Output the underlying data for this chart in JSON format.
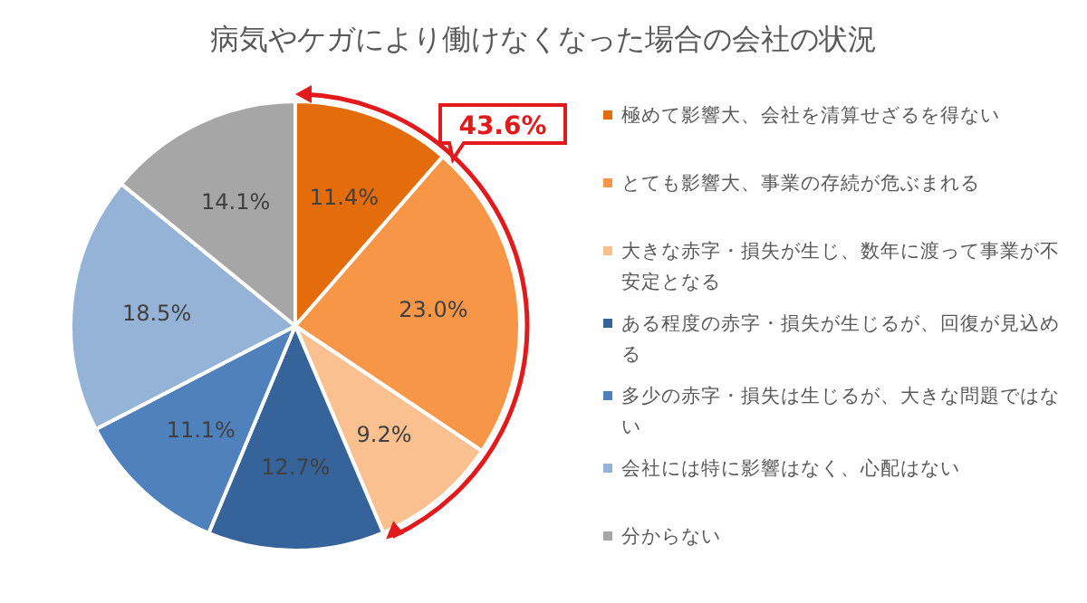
{
  "chart_data": {
    "type": "pie",
    "title": "病気やケガにより働けなくなった場合の会社の状況",
    "categories": [
      "極めて影響大、会社を清算せざるを得ない",
      "とても影響大、事業の存続が危ぶまれる",
      "大きな赤字・損失が生じ、数年に渡って事業が不安定となる",
      "ある程度の赤字・損失が生じるが、回復が見込める",
      "多少の赤字・損失は生じるが、大きな問題ではない",
      "会社には特に影響はなく、心配はない",
      "分からない"
    ],
    "values": [
      11.4,
      23.0,
      9.2,
      12.7,
      11.1,
      18.5,
      14.1
    ],
    "colors": [
      "#e46c0a",
      "#f79646",
      "#fac090",
      "#35639a",
      "#4f81bd",
      "#95b3d7",
      "#a6a6a6"
    ],
    "value_labels": [
      "11.4%",
      "23.0%",
      "9.2%",
      "12.7%",
      "11.1%",
      "18.5%",
      "14.1%"
    ],
    "legend": "right",
    "annotations": [
      "43.6%"
    ]
  }
}
